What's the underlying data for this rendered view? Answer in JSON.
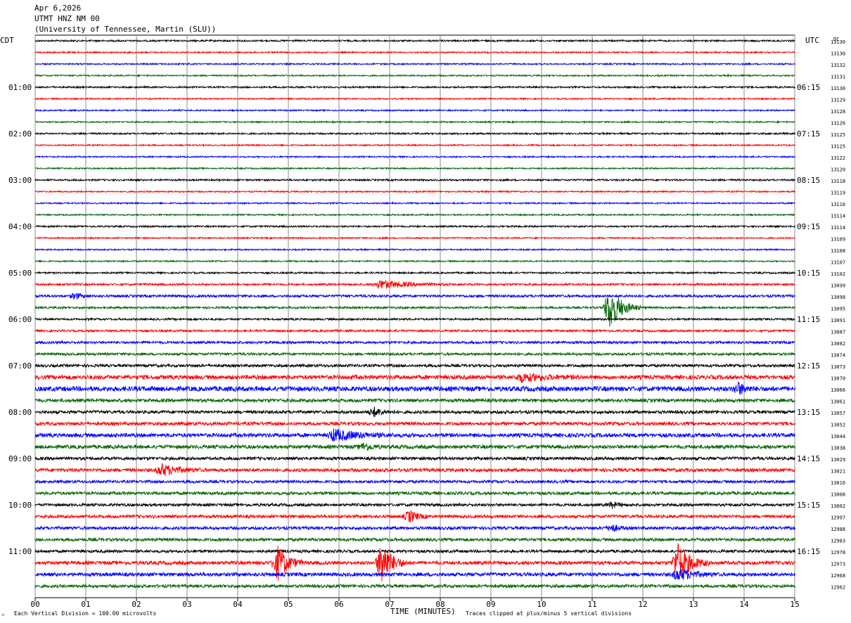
{
  "header": {
    "date": "Apr 6,2026",
    "station": "UTMT HNZ NM 00",
    "network": "(University of Tennessee, Martin (SLU))"
  },
  "left_tz_label": "CDT",
  "right_tz_label": "UTC",
  "dc_label": "DC",
  "footer": {
    "scale_note": "Each Vertical Division = 100.00 microvolts",
    "clip_note": "Traces clipped at plus/minus 5 vertical divisions",
    "corner_mark": "^"
  },
  "chart_data": {
    "type": "line",
    "title": "",
    "xlabel": "TIME (MINUTES)",
    "ylabel": "",
    "x_ticks": [
      "00",
      "01",
      "02",
      "03",
      "04",
      "05",
      "06",
      "07",
      "08",
      "09",
      "10",
      "11",
      "12",
      "13",
      "14",
      "15"
    ],
    "xlim": [
      0,
      15
    ],
    "grid": true,
    "left_hour_labels": [
      "01:00",
      "02:00",
      "03:00",
      "04:00",
      "05:00",
      "06:00",
      "07:00",
      "08:00",
      "09:00",
      "10:00",
      "11:00"
    ],
    "right_hour_labels": [
      "06:15",
      "07:15",
      "08:15",
      "09:15",
      "10:15",
      "11:15",
      "12:15",
      "13:15",
      "14:15",
      "15:15",
      "16:15"
    ],
    "trace_colors": [
      "#000000",
      "#ff0000",
      "#0000ff",
      "#006400"
    ],
    "trace_count": 48,
    "dc_values": [
      "13130",
      "13130",
      "13132",
      "13131",
      "13130",
      "13129",
      "13128",
      "13126",
      "13125",
      "13125",
      "13122",
      "13120",
      "13118",
      "13119",
      "13116",
      "13114",
      "13114",
      "13109",
      "13108",
      "13107",
      "13102",
      "13099",
      "13098",
      "13095",
      "13091",
      "13087",
      "13082",
      "13074",
      "13073",
      "13070",
      "13066",
      "13061",
      "13057",
      "13052",
      "13044",
      "13038",
      "13029",
      "13021",
      "13016",
      "13008",
      "13002",
      "12997",
      "12988",
      "12983",
      "12978",
      "12973",
      "12968",
      "12962"
    ],
    "noise_levels": [
      1.2,
      1.0,
      1.0,
      1.0,
      1.2,
      1.0,
      1.0,
      1.0,
      1.2,
      1.0,
      1.0,
      1.0,
      1.2,
      1.0,
      1.0,
      1.0,
      1.2,
      1.0,
      1.0,
      1.0,
      1.2,
      1.5,
      1.8,
      1.5,
      1.4,
      1.5,
      1.8,
      1.8,
      2.0,
      3.0,
      3.4,
      2.4,
      2.2,
      2.4,
      2.8,
      2.6,
      2.2,
      2.4,
      2.0,
      2.2,
      2.0,
      2.2,
      2.2,
      2.2,
      2.0,
      2.6,
      2.6,
      2.2
    ],
    "events": [
      {
        "trace": 21,
        "minute": 6.8,
        "amp": 6,
        "dur": 1.4
      },
      {
        "trace": 22,
        "minute": 0.8,
        "amp": 4,
        "dur": 0.3
      },
      {
        "trace": 23,
        "minute": 11.35,
        "amp": 30,
        "dur": 0.6
      },
      {
        "trace": 30,
        "minute": 13.9,
        "amp": 8,
        "dur": 0.3
      },
      {
        "trace": 29,
        "minute": 9.6,
        "amp": 5,
        "dur": 1.2
      },
      {
        "trace": 32,
        "minute": 6.7,
        "amp": 6,
        "dur": 0.4
      },
      {
        "trace": 34,
        "minute": 5.9,
        "amp": 8,
        "dur": 1.2
      },
      {
        "trace": 35,
        "minute": 6.5,
        "amp": 5,
        "dur": 0.4
      },
      {
        "trace": 37,
        "minute": 2.5,
        "amp": 8,
        "dur": 0.8
      },
      {
        "trace": 40,
        "minute": 11.4,
        "amp": 4,
        "dur": 0.3
      },
      {
        "trace": 41,
        "minute": 7.4,
        "amp": 8,
        "dur": 0.4
      },
      {
        "trace": 42,
        "minute": 11.4,
        "amp": 5,
        "dur": 0.3
      },
      {
        "trace": 45,
        "minute": 4.8,
        "amp": 25,
        "dur": 0.5
      },
      {
        "trace": 45,
        "minute": 6.85,
        "amp": 30,
        "dur": 0.5
      },
      {
        "trace": 45,
        "minute": 12.7,
        "amp": 28,
        "dur": 0.6
      },
      {
        "trace": 46,
        "minute": 12.7,
        "amp": 8,
        "dur": 0.8
      }
    ]
  }
}
